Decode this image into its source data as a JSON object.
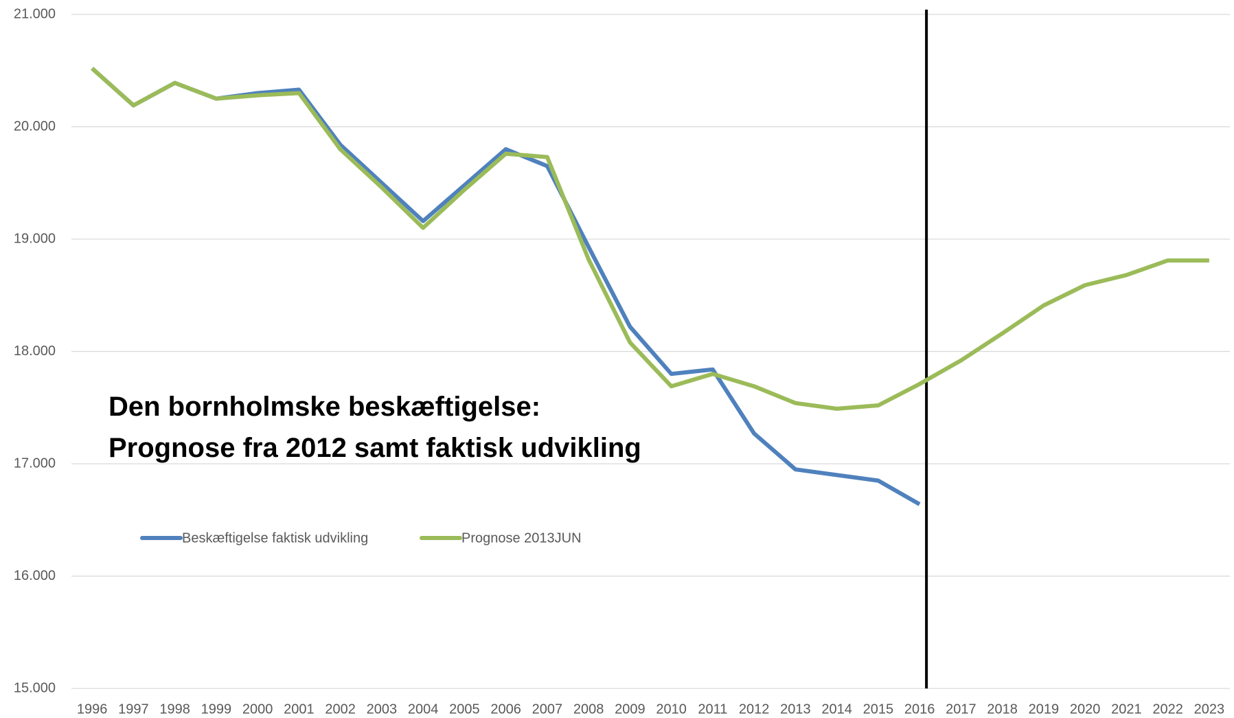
{
  "chart_data": {
    "type": "line",
    "title": [
      "Den bornholmske beskæftigelse:",
      "Prognose fra 2012 samt faktisk udvikling"
    ],
    "categories": [
      "1996",
      "1997",
      "1998",
      "1999",
      "2000",
      "2001",
      "2002",
      "2003",
      "2004",
      "2005",
      "2006",
      "2007",
      "2008",
      "2009",
      "2010",
      "2011",
      "2012",
      "2013",
      "2014",
      "2015",
      "2016",
      "2017",
      "2018",
      "2019",
      "2020",
      "2021",
      "2022",
      "2023"
    ],
    "series": [
      {
        "name": "Beskæftigelse faktisk udvikling",
        "color": "#4f81bd",
        "values": [
          20520,
          20190,
          20390,
          20250,
          20300,
          20330,
          19840,
          19500,
          19160,
          19480,
          19800,
          19650,
          18930,
          18220,
          17800,
          17840,
          17270,
          16950,
          16900,
          16850,
          16640,
          null,
          null,
          null,
          null,
          null,
          null,
          null
        ]
      },
      {
        "name": "Prognose 2013JUN",
        "color": "#9bbb59",
        "values": [
          20520,
          20190,
          20390,
          20250,
          20280,
          20300,
          19800,
          19460,
          19100,
          19440,
          19760,
          19730,
          18820,
          18080,
          17690,
          17800,
          17690,
          17540,
          17490,
          17520,
          17710,
          17920,
          18160,
          18410,
          18590,
          18680,
          18810,
          18810
        ]
      }
    ],
    "ylim": [
      15000,
      21000
    ],
    "yticks": [
      {
        "value": 15000,
        "label": "15.000"
      },
      {
        "value": 16000,
        "label": "16.000"
      },
      {
        "value": 17000,
        "label": "17.000"
      },
      {
        "value": 18000,
        "label": "18.000"
      },
      {
        "value": 19000,
        "label": "19.000"
      },
      {
        "value": 20000,
        "label": "20.000"
      },
      {
        "value": 21000,
        "label": "21.000"
      }
    ],
    "grid": true,
    "marker_category": "2016"
  }
}
